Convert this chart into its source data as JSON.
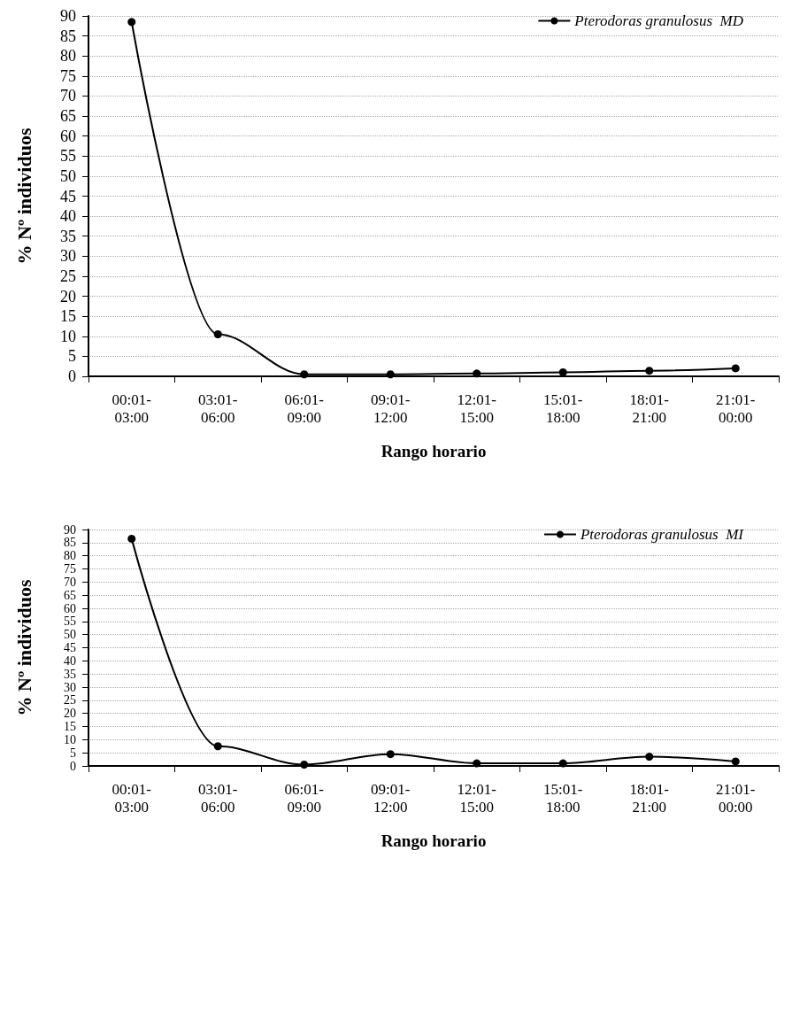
{
  "chart_data": [
    {
      "type": "line",
      "xlabel": "Rango horario",
      "ylabel": "% Nº individuos",
      "categories": [
        "00:01-\n03:00",
        "03:01-\n06:00",
        "06:01-\n09:00",
        "09:01-\n12:00",
        "12:01-\n15:00",
        "15:01-\n18:00",
        "18:01-\n21:00",
        "21:01-\n00:00"
      ],
      "series": [
        {
          "name": "Pterodoras granulosus  MD",
          "color": "#000000",
          "values": [
            88.5,
            10.5,
            0.5,
            0.5,
            0.7,
            1,
            1.4,
            2
          ]
        }
      ],
      "ylim": [
        0,
        90
      ],
      "yticks": [
        0,
        5,
        10,
        15,
        20,
        25,
        30,
        35,
        40,
        45,
        50,
        55,
        60,
        65,
        70,
        75,
        80,
        85,
        90
      ],
      "grid": "y",
      "legend": "top right",
      "marker": "circle",
      "line_style": "solid"
    },
    {
      "type": "line",
      "xlabel": "Rango horario",
      "ylabel": "% Nº individuos",
      "categories": [
        "00:01-\n03:00",
        "03:01-\n06:00",
        "06:01-\n09:00",
        "09:01-\n12:00",
        "12:01-\n15:00",
        "15:01-\n18:00",
        "18:01-\n21:00",
        "21:01-\n00:00"
      ],
      "series": [
        {
          "name": "Pterodoras granulosus  MI",
          "color": "#000000",
          "values": [
            86.5,
            7.5,
            0.5,
            4.5,
            1,
            1,
            3.5,
            1.7
          ]
        }
      ],
      "ylim": [
        0,
        90
      ],
      "yticks": [
        0,
        5,
        10,
        15,
        20,
        25,
        30,
        35,
        40,
        45,
        50,
        55,
        60,
        65,
        70,
        75,
        80,
        85,
        90
      ],
      "grid": "y",
      "legend": "top right",
      "marker": "circle",
      "line_style": "solid"
    }
  ]
}
